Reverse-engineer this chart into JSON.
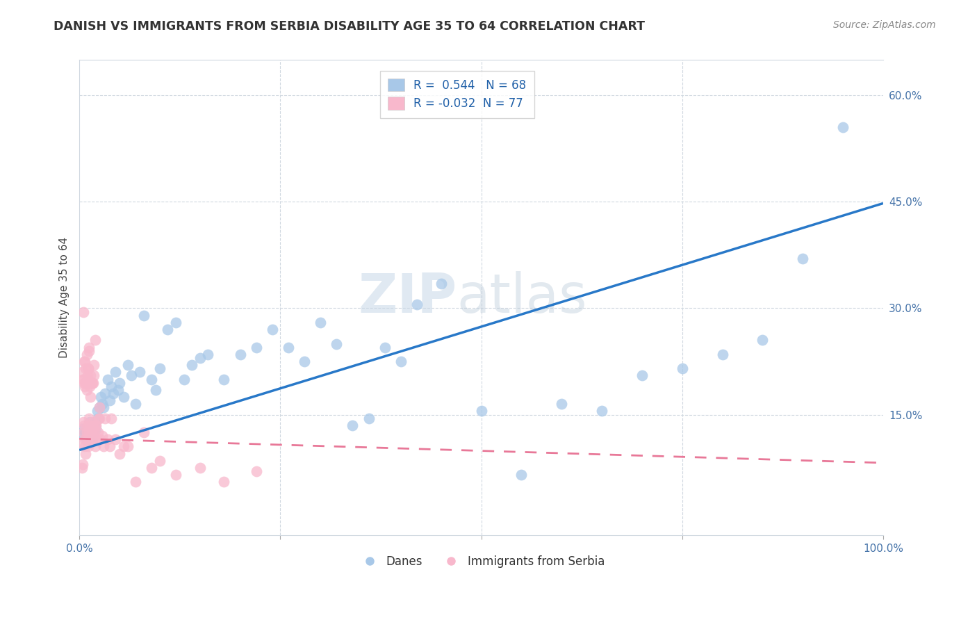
{
  "title": "DANISH VS IMMIGRANTS FROM SERBIA DISABILITY AGE 35 TO 64 CORRELATION CHART",
  "source": "Source: ZipAtlas.com",
  "ylabel": "Disability Age 35 to 64",
  "xlim": [
    0,
    1.0
  ],
  "ylim": [
    -0.02,
    0.65
  ],
  "danes_R": 0.544,
  "danes_N": 68,
  "serbia_R": -0.032,
  "serbia_N": 77,
  "danes_color": "#a8c8e8",
  "danes_line_color": "#2878c8",
  "serbia_color": "#f8b8cc",
  "serbia_line_color": "#e87898",
  "watermark_zip": "ZIP",
  "watermark_atlas": "atlas",
  "background_color": "#ffffff",
  "danes_x": [
    0.003,
    0.005,
    0.007,
    0.009,
    0.01,
    0.011,
    0.012,
    0.013,
    0.014,
    0.015,
    0.016,
    0.017,
    0.018,
    0.02,
    0.021,
    0.022,
    0.023,
    0.025,
    0.027,
    0.028,
    0.03,
    0.032,
    0.035,
    0.038,
    0.04,
    0.042,
    0.045,
    0.048,
    0.05,
    0.055,
    0.06,
    0.065,
    0.07,
    0.075,
    0.08,
    0.09,
    0.095,
    0.1,
    0.11,
    0.12,
    0.13,
    0.14,
    0.15,
    0.16,
    0.18,
    0.2,
    0.22,
    0.24,
    0.26,
    0.28,
    0.3,
    0.32,
    0.34,
    0.36,
    0.38,
    0.4,
    0.42,
    0.45,
    0.5,
    0.55,
    0.6,
    0.65,
    0.7,
    0.75,
    0.8,
    0.85,
    0.9,
    0.95
  ],
  "danes_y": [
    0.13,
    0.12,
    0.125,
    0.115,
    0.13,
    0.125,
    0.12,
    0.14,
    0.135,
    0.12,
    0.115,
    0.13,
    0.125,
    0.14,
    0.13,
    0.155,
    0.145,
    0.16,
    0.175,
    0.165,
    0.16,
    0.18,
    0.2,
    0.17,
    0.19,
    0.18,
    0.21,
    0.185,
    0.195,
    0.175,
    0.22,
    0.205,
    0.165,
    0.21,
    0.29,
    0.2,
    0.185,
    0.215,
    0.27,
    0.28,
    0.2,
    0.22,
    0.23,
    0.235,
    0.2,
    0.235,
    0.245,
    0.27,
    0.245,
    0.225,
    0.28,
    0.25,
    0.135,
    0.145,
    0.245,
    0.225,
    0.305,
    0.335,
    0.155,
    0.065,
    0.165,
    0.155,
    0.205,
    0.215,
    0.235,
    0.255,
    0.37,
    0.555
  ],
  "serbia_x": [
    0.002,
    0.003,
    0.003,
    0.004,
    0.004,
    0.005,
    0.005,
    0.005,
    0.006,
    0.006,
    0.007,
    0.007,
    0.007,
    0.008,
    0.008,
    0.009,
    0.009,
    0.01,
    0.01,
    0.01,
    0.011,
    0.011,
    0.012,
    0.012,
    0.012,
    0.013,
    0.013,
    0.014,
    0.014,
    0.015,
    0.015,
    0.016,
    0.016,
    0.017,
    0.017,
    0.018,
    0.018,
    0.019,
    0.02,
    0.02,
    0.021,
    0.022,
    0.023,
    0.024,
    0.025,
    0.026,
    0.028,
    0.03,
    0.032,
    0.035,
    0.038,
    0.04,
    0.045,
    0.05,
    0.055,
    0.06,
    0.07,
    0.08,
    0.09,
    0.1,
    0.12,
    0.15,
    0.18,
    0.22,
    0.005,
    0.006,
    0.007,
    0.008,
    0.009,
    0.01,
    0.011,
    0.012,
    0.014,
    0.016,
    0.018,
    0.02,
    0.025
  ],
  "serbia_y": [
    0.11,
    0.075,
    0.21,
    0.08,
    0.2,
    0.125,
    0.14,
    0.2,
    0.135,
    0.195,
    0.115,
    0.105,
    0.225,
    0.095,
    0.215,
    0.125,
    0.185,
    0.115,
    0.135,
    0.205,
    0.105,
    0.215,
    0.125,
    0.145,
    0.24,
    0.135,
    0.19,
    0.12,
    0.205,
    0.125,
    0.195,
    0.115,
    0.14,
    0.135,
    0.195,
    0.125,
    0.205,
    0.13,
    0.105,
    0.135,
    0.135,
    0.115,
    0.125,
    0.145,
    0.145,
    0.115,
    0.12,
    0.105,
    0.145,
    0.115,
    0.105,
    0.145,
    0.115,
    0.095,
    0.105,
    0.105,
    0.055,
    0.125,
    0.075,
    0.085,
    0.065,
    0.075,
    0.055,
    0.07,
    0.295,
    0.225,
    0.19,
    0.195,
    0.235,
    0.2,
    0.215,
    0.245,
    0.175,
    0.195,
    0.22,
    0.255,
    0.16
  ],
  "danes_line_x0": 0.0,
  "danes_line_y0": 0.1,
  "danes_line_x1": 1.0,
  "danes_line_y1": 0.448,
  "serbia_line_x0": 0.0,
  "serbia_line_y0": 0.116,
  "serbia_line_x1": 1.0,
  "serbia_line_y1": 0.082
}
